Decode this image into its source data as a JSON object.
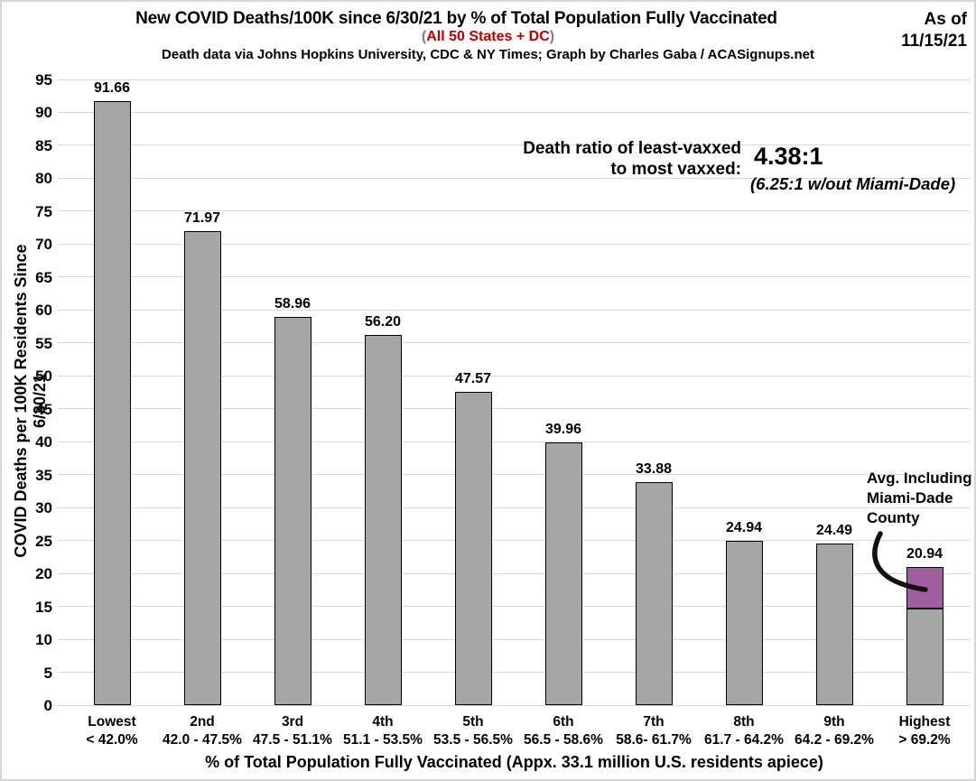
{
  "header": {
    "title": "New COVID Deaths/100K since 6/30/21 by % of Total Population Fully Vaccinated",
    "subtitle_open": "(",
    "subtitle_text": "All 50 States + DC",
    "subtitle_close": ")",
    "source": "Death data via Johns Hopkins University, CDC & NY Times; Graph by Charles Gaba / ACASignups.net",
    "as_of_line1": "As of",
    "as_of_line2": "11/15/21"
  },
  "annotations": {
    "ratio_label_line1": "Death ratio of least-vaxxed",
    "ratio_label_line2": "to most vaxxed:",
    "ratio_value": "4.38:1",
    "ratio_note": "(6.25:1 w/out Miami-Dade)",
    "avg_note_line1": "Avg. Including",
    "avg_note_line2": "Miami-Dade",
    "avg_note_line3": "County"
  },
  "chart_data": {
    "type": "bar",
    "title": "New COVID Deaths/100K since 6/30/21 by % of Total Population Fully Vaccinated",
    "xlabel": "% of Total Population Fully Vaccinated (Appx. 33.1 million U.S. residents apiece)",
    "ylabel": "COVID Deaths per 100K Residents Since 6/30/21",
    "ylim": [
      0,
      95
    ],
    "ytick_step": 5,
    "grid": true,
    "legend": "none",
    "categories": [
      {
        "rank": "Lowest",
        "range": "< 42.0%"
      },
      {
        "rank": "2nd",
        "range": "42.0 - 47.5%"
      },
      {
        "rank": "3rd",
        "range": "47.5 - 51.1%"
      },
      {
        "rank": "4th",
        "range": "51.1 - 53.5%"
      },
      {
        "rank": "5th",
        "range": "53.5 - 56.5%"
      },
      {
        "rank": "6th",
        "range": "56.5 - 58.6%"
      },
      {
        "rank": "7th",
        "range": "58.6- 61.7%"
      },
      {
        "rank": "8th",
        "range": "61.7 - 64.2%"
      },
      {
        "rank": "9th",
        "range": "64.2 - 69.2%"
      },
      {
        "rank": "Highest",
        "range": "> 69.2%"
      }
    ],
    "values": [
      91.66,
      71.97,
      58.96,
      56.2,
      47.57,
      39.96,
      33.88,
      24.94,
      24.49,
      20.94
    ],
    "value_labels": [
      "91.66",
      "71.97",
      "58.96",
      "56.20",
      "47.57",
      "39.96",
      "33.88",
      "24.94",
      "24.49",
      "20.94"
    ],
    "bar_color": "#A6A6A6",
    "bar_border_color": "#000000",
    "gridline_color": "#d9d9d9",
    "highest_bar_split": {
      "split_at": 14.67,
      "top_value": 20.94,
      "top_segment_color": "#A25CA0"
    }
  }
}
